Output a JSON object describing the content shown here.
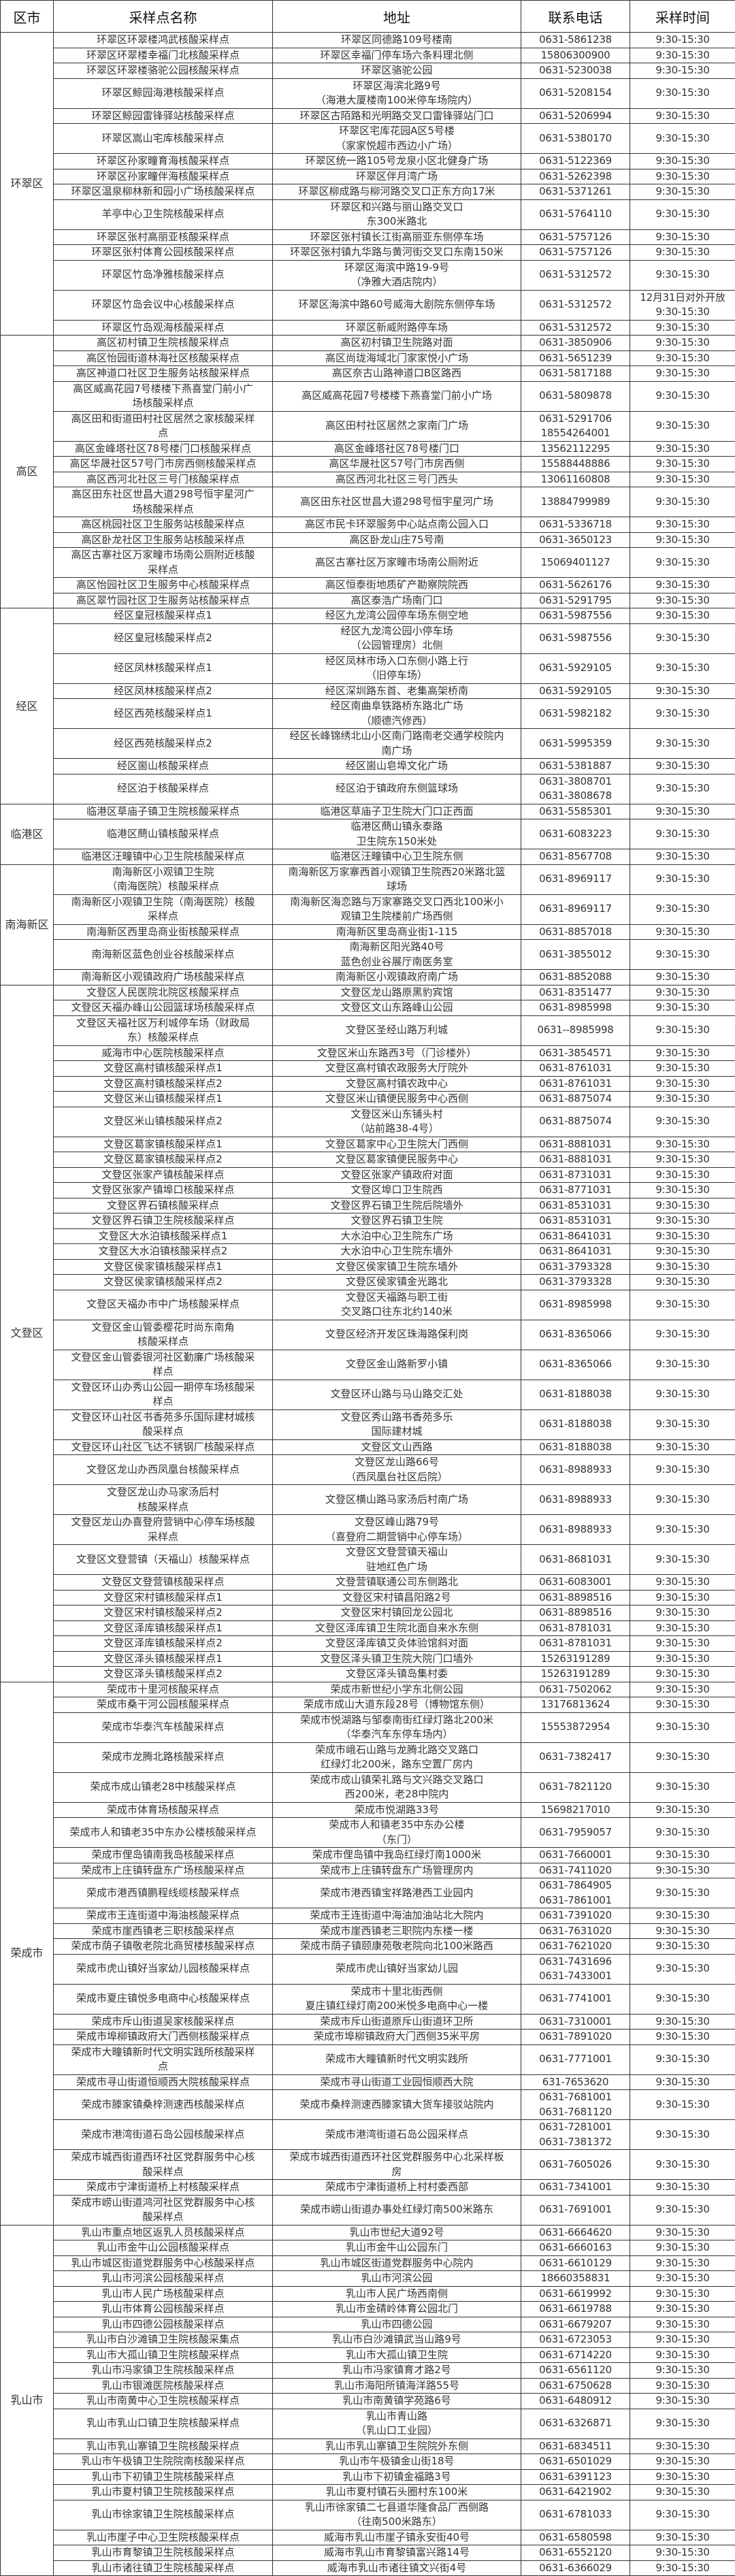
{
  "header": {
    "district": "区市",
    "name": "采样点名称",
    "address": "地址",
    "phone": "联系电话",
    "time": "采样时间"
  },
  "groups": [
    {
      "district": "环翠区",
      "rows": [
        [
          "环翠区环翠楼鸿武核酸采样点",
          "环翠区同德路109号楼南",
          "0631-5861238",
          "9:30-15:30"
        ],
        [
          "环翠区环翠楼幸福门北核酸采样点",
          "环翠区幸福门停车场六条料理北侧",
          "15806300900",
          "9:30-15:30"
        ],
        [
          "环翠区环翠楼骆驼公园核酸采样点",
          "环翠区骆驼公园",
          "0631-5230038",
          "9:30-15:30"
        ],
        [
          "环翠区鲸园海港核酸采样点",
          "环翠区海滨北路9号\n（海港大厦楼南100米停车场院内）",
          "0631-5208154",
          "9:30-15:30"
        ],
        [
          "环翠区鲸园雷锋驿站核酸采样点",
          "环翠区古陌路和光明路交叉口雷锋驿站门口",
          "0631-5206994",
          "9:30-15:30"
        ],
        [
          "环翠区嵩山宅库核酸采样点",
          "环翠区宅库花园A区5号楼\n（家家悦超市西边小广场）",
          "0631-5380170",
          "9:30-15:30"
        ],
        [
          "环翠区孙家疃育海核酸采样点",
          "环翠区统一路105号龙泉小区北健身广场",
          "0631-5122369",
          "9:30-15:30"
        ],
        [
          "环翠区孙家疃伴海核酸采样点",
          "环翠区伴月湾广场",
          "0631-5262398",
          "9:30-15:30"
        ],
        [
          "环翠区温泉柳林新和园小广场核酸采样点",
          "环翠区柳成路与柳河路交叉口正东方向17米",
          "0631-5371261",
          "9:30-15:30"
        ],
        [
          "羊亭中心卫生院核酸采样点",
          "环翠区和兴路与丽山路交叉口\n东300米路北",
          "0631-5764110",
          "9:30-15:30"
        ],
        [
          "环翠区张村高丽亚核酸采样点",
          "环翠区张村镇长江街高丽亚东侧停车场",
          "0631-5757126",
          "9:30-15:30"
        ],
        [
          "环翠区张村体育公园核酸采样点",
          "环翠区张村镇九华路与黄河街交叉口东南150米",
          "0631-5757126",
          "9:30-15:30"
        ],
        [
          "环翠区竹岛净雅核酸采样点",
          "环翠区海滨中路19-9号\n（净雅大酒店院内）",
          "0631-5312572",
          "9:30-15:30"
        ],
        [
          "环翠区竹岛会议中心核酸采样点",
          "环翠区海滨中路60号威海大剧院东侧停车场",
          "0631-5312572",
          "12月31日对外开放\n9:30-15:30"
        ],
        [
          "环翠区竹岛观海核酸采样点",
          "环翠区新威附路停车场",
          "0631-5312572",
          "9:30-15:30"
        ]
      ]
    },
    {
      "district": "高区",
      "rows": [
        [
          "高区初村镇卫生院核酸采样点",
          "高区初村镇卫生院路对面",
          "0631-3850906",
          "9:30-15:30"
        ],
        [
          "高区怡园街道林海社区核酸采样点",
          "高区尚珑海域北门家家悦小广场",
          "0631-5651239",
          "9:30-15:30"
        ],
        [
          "高区神道口社区卫生服务站核酸采样点",
          "高区奈古山路神道口B区路西",
          "0631-5817188",
          "9:30-15:30"
        ],
        [
          "高区威高花园7号楼楼下燕喜堂门前小广\n场核酸采样点",
          "高区威高花园7号楼楼下燕喜堂门前小广场",
          "0631-5809878",
          "9:30-15:30"
        ],
        [
          "高区田和街道田村社区居然之家核酸采样\n点",
          "高区田村社区居然之家南门广场",
          "0631-5291706\n18554264001",
          "9:30-15:30"
        ],
        [
          "高区金峰塔社区78号楼门口核酸采样点",
          "高区金峰塔社区78号楼门口",
          "13562112295",
          "9:30-15:30"
        ],
        [
          "高区华晟社区57号门市房西侧核酸采样点",
          "高区华晟社区57号门市房西侧",
          "15588448886",
          "9:30-15:30"
        ],
        [
          "高区西河北社区三号门核酸采样点",
          "高区西河北社区三号门西头",
          "13061160808",
          "9:30-15:30"
        ],
        [
          "高区田东社区世昌大道298号恒宇星河广\n场核酸采样点",
          "高区田东社区世昌大道298号恒宇星河广场",
          "13884799989",
          "9:30-15:30"
        ],
        [
          "高区桃园社区卫生服务站核酸采样点",
          "高区市民卡环翠服务中心站点南公园入口",
          "0631-5336718",
          "9:30-15:30"
        ],
        [
          "高区卧龙社区卫生服务站核酸采样点",
          "高区卧龙山庄75号南",
          "0631-3650123",
          "9:30-15:30"
        ],
        [
          "高区古寨社区万家疃市场南公厕附近核酸\n采样点",
          "高区古寨社区万家疃市场南公厕附近",
          "15069401127",
          "9:30-15:30"
        ],
        [
          "高区怡园社区卫生服务中心核酸采样点",
          "高区恒泰街地质矿产勘察院院西",
          "0631-5626176",
          "9:30-15:30"
        ],
        [
          "高区翠竹园社区卫生服务站核酸采样点",
          "高区泰浩广场南门口",
          "0631-5291795",
          "9:30-15:30"
        ]
      ]
    },
    {
      "district": "经区",
      "rows": [
        [
          "经区皇冠核酸采样点1",
          "经区九龙湾公园停车场东侧空地",
          "0631-5987556",
          "9:30-15:30"
        ],
        [
          "经区皇冠核酸采样点2",
          "经区九龙湾公园小停车场\n（公园管理房）北侧",
          "0631-5987556",
          "9:30-15:30"
        ],
        [
          "经区凤林核酸采样点1",
          "经区凤林市场入口东侧小路上行\n（旧停车场）",
          "0631-5929105",
          "9:30-15:30"
        ],
        [
          "经区凤林核酸采样点2",
          "经区深圳路东首、老集高架桥南",
          "0631-5929105",
          "9:30-15:30"
        ],
        [
          "经区西苑核酸采样点1",
          "经区南曲阜铁路桥东路北广场\n（顺德汽修西）",
          "0631-5982182",
          "9:30-15:30"
        ],
        [
          "经区西苑核酸采样点2",
          "经区长峰锦绣北山小区南门路南老交通学校院内\n南广场",
          "0631-5995359",
          "9:30-15:30"
        ],
        [
          "经区崮山核酸采样点",
          "经区崮山皂埠文化广场",
          "0631-5381887",
          "9:30-15:30"
        ],
        [
          "经区泊于核酸采样点",
          "经区泊于镇政府东侧篮球场",
          "0631-3808701\n0631-3808678",
          "9:30-15:30"
        ]
      ]
    },
    {
      "district": "临港区",
      "rows": [
        [
          "临港区草庙子镇卫生院核酸采样点",
          "临港区草庙子卫生院大门口正西面",
          "0631-5585301",
          "9:30-15:30"
        ],
        [
          "临港区蔄山镇核酸采样点",
          "临港区蔄山镇永泰路\n卫生院东150米处",
          "0631-6083223",
          "9:30-15:30"
        ],
        [
          "临港区汪疃镇中心卫生院核酸采样点",
          "临港区汪疃镇中心卫生院东侧",
          "0631-8567708",
          "9:30-15:30"
        ]
      ]
    },
    {
      "district": "南海新区",
      "rows": [
        [
          "南海新区小观镇卫生院\n（南海医院）核酸采样点",
          "南海新区万家寨西首小观镇卫生院西20米路北篮\n球场",
          "0631-8969117",
          "9:30-15:30"
        ],
        [
          "南海新区小观镇卫生院（南海医院）核酸\n采样点",
          "南海新区海恋路与万家寨路交叉口西北100米小\n观镇卫生院楼前广场西侧",
          "0631-8969117",
          "9:30-15:30"
        ],
        [
          "南海新区西里岛商业街核酸采样点",
          "南海新区里岛商业街1-115",
          "0631-8857018",
          "9:30-15:30"
        ],
        [
          "南海新区蓝色创业谷核酸采样点",
          "南海新区阳光路40号\n蓝色创业谷展厅南医务室",
          "0631-3855012",
          "9:30-15:30"
        ],
        [
          "南海新区小观镇政府广场核酸采样点",
          "南海新区小观镇政府南广场",
          "0631-8852088",
          "9:30-15:30"
        ]
      ]
    },
    {
      "district": "文登区",
      "rows": [
        [
          "文登区人民医院北院区核酸采样点",
          "文登区龙山路原黑豹宾馆",
          "0631-8351477",
          "9:30-15:30"
        ],
        [
          "文登区天福办峰山公园篮球场核酸采样点",
          "文登区文山东路峰山公园",
          "0631-8985998",
          "9:30-15:30"
        ],
        [
          "文登区天福社区万利城停车场（财政局\n东）核酸采样点",
          "文登区圣经山路万利城",
          "0631--8985998",
          "9:30-15:30"
        ],
        [
          "威海市中心医院核酸采样点",
          "文登区米山东路西3号（门诊楼外）",
          "0631-3854571",
          "9:30-15:30"
        ],
        [
          "文登区高村镇核酸采样点1",
          "文登区高村镇农政服务大厅院外",
          "0631-8761031",
          "9:30-15:30"
        ],
        [
          "文登区高村镇核酸采样点2",
          "文登区高村镇农政中心",
          "0631-8761031",
          "9:30-15:30"
        ],
        [
          "文登区米山镇核酸采样点1",
          "文登区米山镇便民服务中心西侧",
          "0631-8875074",
          "9:30-15:30"
        ],
        [
          "文登区米山镇核酸采样点2",
          "文登区米山东铺头村\n（站前路38-4号）",
          "0631-8875074",
          "9:30-15:30"
        ],
        [
          "文登区葛家镇核酸采样点1",
          "文登区葛家中心卫生院大门西侧",
          "0631-8881031",
          "9:30-15:30"
        ],
        [
          "文登区葛家镇核酸采样点2",
          "文登区葛家镇便民服务中心",
          "0631-8881031",
          "9:30-15:30"
        ],
        [
          "文登区张家产镇核酸采样点",
          "文登区张家产镇政府对面",
          "0631-8731031",
          "9:30-15:30"
        ],
        [
          "文登区张家产镇埠口核酸采样点",
          "文登区埠口卫生院西",
          "0631-8771031",
          "9:30-15:30"
        ],
        [
          "文登区界石镇核酸采样点",
          "文登区界石镇卫生院后院墙外",
          "0631-8531031",
          "9:30-15:30"
        ],
        [
          "文登区界石镇卫生院核酸采样点",
          "文登区界石镇卫生院",
          "0631-8531031",
          "9:30-15:30"
        ],
        [
          "文登区大水泊镇核酸采样点1",
          "大水泊中心卫生院东广场",
          "0631-8641031",
          "9:30-15:30"
        ],
        [
          "文登区大水泊镇核酸采样点2",
          "大水泊中心卫生院东墙外",
          "0631-8641031",
          "9:30-15:30"
        ],
        [
          "文登区侯家镇核酸采样点1",
          "文登区侯家镇卫生院东墙外",
          "0631-3793328",
          "9:30-15:30"
        ],
        [
          "文登区侯家镇核酸采样点2",
          "文登区侯家镇金光路北",
          "0631-3793328",
          "9:30-15:30"
        ],
        [
          "文登区天福办市中广场核酸采样点",
          "文登区天福路与职工街\n交叉路口往东北约140米",
          "0631-8985998",
          "9:30-15:30"
        ],
        [
          "文登区金山管委樱花时尚东南角\n核酸采样点",
          "文登区经济开发区珠海路保利岗",
          "0631-8365066",
          "9:30-15:30"
        ],
        [
          "文登区金山管委银河社区勤廉广场核酸采\n样点",
          "文登区金山路新罗小镇",
          "0631-8365066",
          "9:30-15:30"
        ],
        [
          "文登区环山办秀山公园一期停车场核酸采\n样点",
          "文登区环山路与马山路交汇处",
          "0631-8188038",
          "9:30-15:30"
        ],
        [
          "文登区环山社区书香苑多乐国际建材城核\n酸采样点",
          "文登区秀山路书香苑多乐\n国际建材城",
          "0631-8188038",
          "9:30-15:30"
        ],
        [
          "文登区环山社区飞达不锈钢厂核酸采样点",
          "文登区文山西路",
          "0631-8188038",
          "9:30-15:30"
        ],
        [
          "文登区龙山办西凤凰台核酸采样点",
          "文登区龙山路66号\n（西凤凰台社区后院）",
          "0631-8988933",
          "9:30-15:30"
        ],
        [
          "文登区龙山办马家汤后村\n核酸采样点",
          "文登区横山路马家汤后村南广场",
          "0631-8988933",
          "9:30-15:30"
        ],
        [
          "文登区龙山办喜登府营销中心停车场核酸\n采样点",
          "文登区峰山路79号\n（喜登府二期营销中心停车场）",
          "0631-8988933",
          "9:30-15:30"
        ],
        [
          "文登区文登营镇（天福山）核酸采样点",
          "文登区文登营镇天福山\n驻地红色广场",
          "0631-8681031",
          "9:30-15:30"
        ],
        [
          "文登区文登营镇核酸采样点",
          "文登营镇联通公司东侧路北",
          "0631-6083001",
          "9:30-15:30"
        ],
        [
          "文登区宋村镇核酸采样点1",
          "文登区宋村镇昌阳路2号",
          "0631-8898516",
          "9:30-15:30"
        ],
        [
          "文登区宋村镇核酸采样点2",
          "文登区宋村镇回龙公园北",
          "0631-8898516",
          "9:30-15:30"
        ],
        [
          "文登区泽库镇核酸采样点1",
          "文登区泽库镇卫生院北面自来水东侧",
          "0631-8781031",
          "9:30-15:30"
        ],
        [
          "文登区泽库镇核酸采样点2",
          "文登区泽库镇艾灸体验馆斜对面",
          "0631-8781031",
          "9:30-15:30"
        ],
        [
          "文登区泽头镇核酸采样点1",
          "文登区泽头镇卫生院大院门口墙外",
          "15263191289",
          "9:30-15:30"
        ],
        [
          "文登区泽头镇核酸采样点2",
          "文登区泽头镇岛集村委",
          "15263191289",
          "9:30-15:30"
        ]
      ]
    },
    {
      "district": "荣成市",
      "rows": [
        [
          "荣成市十里河核酸采样点",
          "荣成市新世纪小学东北侧公园",
          "0631-7502062",
          "9:30-15:30"
        ],
        [
          "荣成市桑干河公园核酸采样点",
          "荣成市成山大道东段28号（博物馆东侧）",
          "13176813624",
          "9:30-15:30"
        ],
        [
          "荣成市华泰汽车核酸采样点",
          "荣成市悦湖路与邹泰南街红绿灯路北200米\n（华泰汽车东停车场内）",
          "15553872954",
          "9:30-15:30"
        ],
        [
          "荣成市龙腾北路核酸采样点",
          "荣成市峨石山路与龙腾北路交叉路口\n红绿灯北200米，路东空置厂房内",
          "0631-7382417",
          "9:30-15:30"
        ],
        [
          "荣成市成山镇老28中核酸采样点",
          "荣成市成山镇荣礼路与文兴路交叉路口\n西200米，老28中院内",
          "0631-7821120",
          "9:30-15:30"
        ],
        [
          "荣成市体育场核酸采样点",
          "荣成市悦湖路33号",
          "15698217010",
          "9:30-15:30"
        ],
        [
          "荣成市人和镇老35中东办公楼核酸采样点",
          "荣成市人和镇老35中东办公楼\n（东门）",
          "0631-7959057",
          "9:30-15:30"
        ],
        [
          "荣成市俚岛镇南我岛核酸采样点",
          "荣成市俚岛镇中我岛红绿灯南1000米",
          "0631-7660001",
          "9:30-15:30"
        ],
        [
          "荣成市上庄镇转盘东广场核酸采样点",
          "荣成市上庄镇转盘东广场管理房内",
          "0631-7411020",
          "9:30-15:30"
        ],
        [
          "荣成市港西镇鹏程线缆核酸采样点",
          "荣成市港西镇宝祥路港西工业园内",
          "0631-7864905\n0631-7861001",
          "9:30-15:30"
        ],
        [
          "荣成市王连街道中海油核酸采样点",
          "荣成市王连街道中海油加油站北大院内",
          "0631-7391020",
          "9:30-15:30"
        ],
        [
          "荣成市崖西镇老三职核酸采样点",
          "荣成市崖西镇老三职院内东楼一楼",
          "0631-7631020",
          "9:30-15:30"
        ],
        [
          "荣成市荫子镇敬老院北商贸楼核酸采样点",
          "荣成市荫子镇颐康苑敬老院向北100米路西",
          "0631-7621020",
          "9:30-15:30"
        ],
        [
          "荣成市虎山镇好当家幼儿园核酸采样点",
          "荣成市虎山镇好当家幼儿园",
          "0631-7431696\n0631-7433001",
          "9:30-15:30"
        ],
        [
          "荣成市夏庄镇悦多电商中心核酸采样点",
          "荣成市十里北街西侧\n夏庄镇红绿灯南200米悦多电商中心一楼",
          "0631-7741001",
          "9:30-15:30"
        ],
        [
          "荣成市斥山街道吴家核酸采样点",
          "荣成市斥山街道原斥山街道环卫所",
          "0631-7310001",
          "9:30-15:30"
        ],
        [
          "荣成市埠柳镇政府大门西侧核酸采样点",
          "荣成市埠柳镇政府大门西侧35米平房",
          "0631-7891020",
          "9:30-15:30"
        ],
        [
          "荣成市大疃镇新时代文明实践所核酸采样\n点",
          "荣成市大疃镇新时代文明实践所",
          "0631-7771001",
          "9:30-15:30"
        ],
        [
          "荣成市寻山街道恒顺西大院核酸采样点",
          "荣成市寻山街道工业园恒顺西大院",
          "631-7653620",
          "9:30-15:30"
        ],
        [
          "荣成市滕家镇桑梓测速西核酸采样点",
          "荣成市桑梓测速西滕家镇大货车接驳站院内",
          "0631-7681001\n0631-7681120",
          "9:30-15:30"
        ],
        [
          "荣成市港湾街道石岛公园核酸采样点",
          "荣成市港湾街道石岛公园采样点",
          "0631-7281001\n0631-7381372",
          "9:30-15:30"
        ],
        [
          "荣成市城西街道西环社区党群服务中心核\n酸采样点",
          "荣成市城西街道西环社区党群服务中心北采样板\n房",
          "0631-7605026",
          "9:30-15:30"
        ],
        [
          "荣成市宁津街道桥上村核酸采样点",
          "荣成市宁津街道桥上村村委西部",
          "0631-7341001",
          "9:30-15:30"
        ],
        [
          "荣成市崂山街道鸿河社区党群服务中心核\n酸采样点",
          "荣成市崂山街道办事处红绿灯南500米路东",
          "0631-7691001",
          "9:30-15:30"
        ]
      ]
    },
    {
      "district": "乳山市",
      "rows": [
        [
          "乳山市重点地区返乳人员核酸采样点",
          "乳山市世纪大道92号",
          "0631-6664620",
          "9:30-15:30"
        ],
        [
          "乳山市金牛山公园核酸采样点",
          "乳山市金牛山公园东门",
          "0631-6660163",
          "9:30-15:30"
        ],
        [
          "乳山市城区街道党群服务中心核酸采样点",
          "乳山市城区街道党群服务中心院内",
          "0631-6610129",
          "9:30-15:30"
        ],
        [
          "乳山市河滨公园核酸采样点",
          "乳山市河滨公园",
          "18660358831",
          "9:30-15:30"
        ],
        [
          "乳山市人民广场核酸采样点",
          "乳山市人民广场西南侧",
          "0631-6619992",
          "9:30-15:30"
        ],
        [
          "乳山市体育公园核酸采样点",
          "乳山市金碃岭体育公园北门",
          "0631-6619788",
          "9:30-15:30"
        ],
        [
          "乳山市四德公园核酸采样点",
          "乳山市四德公园",
          "0631-6679207",
          "9:30-15:30"
        ],
        [
          "乳山市白沙滩镇卫生院核酸采集点",
          "乳山市白沙滩镇武当山路9号",
          "0631-6723053",
          "9:30-15:30"
        ],
        [
          "乳山市大孤山镇卫生院核酸采样点",
          "乳山市大孤山镇卫生院",
          "0631-6714220",
          "9:30-15:30"
        ],
        [
          "乳山市冯家镇卫生院核酸采样点",
          "乳山市冯家镇育才路2号",
          "0631-6561120",
          "9:30-15:30"
        ],
        [
          "乳山市银滩医院核酸采样点",
          "乳山市海阳所镇海洋路55号",
          "0631-6750628",
          "9:30-15:30"
        ],
        [
          "乳山市南黄中心卫生院核酸采样点",
          "乳山市南黄镇学苑路6号",
          "0631-6480912",
          "9:30-15:30"
        ],
        [
          "乳山市乳山口镇卫生院核酸采样点",
          "乳山市青山路\n（乳山口工业园）",
          "0631-6326871",
          "9:30-15:30"
        ],
        [
          "乳山市乳山寨镇卫生院核酸采样点",
          "乳山市乳山寨镇卫生院院外东侧",
          "0631-6834511",
          "9:30-15:30"
        ],
        [
          "乳山市午极镇卫生院院南核酸采样点",
          "乳山市午极镇金山街18号",
          "0631-6501029",
          "9:30-15:30"
        ],
        [
          "乳山市下初镇卫生院核酸采样点",
          "乳山市下初镇金福路3号",
          "0631-6391123",
          "9:30-15:30"
        ],
        [
          "乳山市夏村镇卫生院核酸采样点",
          "乳山市夏村镇石头圈村东100米",
          "0631-6421902",
          "9:30-15:30"
        ],
        [
          "乳山市徐家镇卫生院核酸采样点",
          "乳山市徐家镇二七县道华隆食品厂西侧路\n（往南500米路东）",
          "0631-6781033",
          "9:30-15:30"
        ],
        [
          "乳山市崖子中心卫生院核酸采样点",
          "威海市乳山市崖子镇永安街40号",
          "0631-6580598",
          "9:30-15:30"
        ],
        [
          "乳山市育黎镇卫生院核酸采样点",
          "威海市乳山市育黎镇富兴路14号",
          "0631-6552120",
          "9:30-15:30"
        ],
        [
          "乳山市诸往镇卫生院核酸采样点",
          "威海市乳山市诸往镇文兴街4号",
          "0631-6366029",
          "9:30-15:30"
        ]
      ]
    }
  ]
}
